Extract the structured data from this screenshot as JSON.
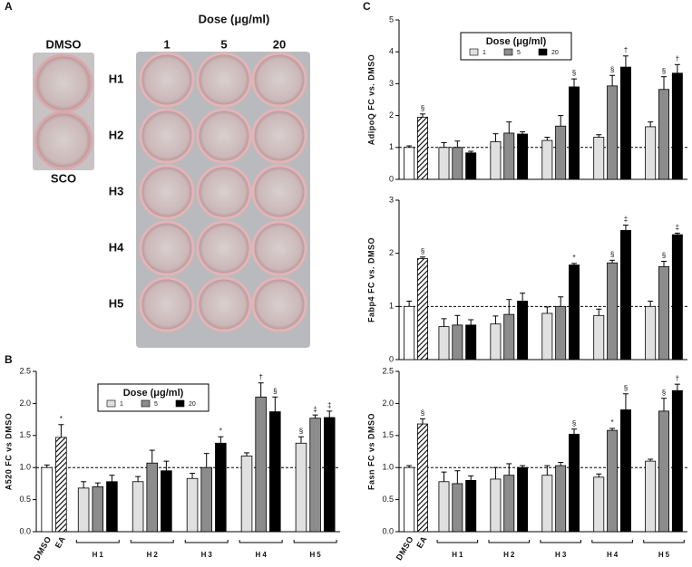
{
  "panel_labels": [
    "A",
    "B",
    "C"
  ],
  "photo": {
    "dose_title": "Dose (μg/ml)",
    "doses": [
      "1",
      "5",
      "20"
    ],
    "controls": [
      "DMSO",
      "SCO"
    ],
    "rows": [
      "H1",
      "H2",
      "H3",
      "H4",
      "H5"
    ]
  },
  "chart_data": [
    {
      "type": "bar",
      "y_label": "A520 FC vs DMSO",
      "legend": "top-left",
      "legend_title": "Dose (μg/ml)",
      "ylim": [
        0,
        2.5
      ],
      "yticks": [
        {
          "value": 0,
          "label": "0.0"
        },
        0.5,
        {
          "value": 1,
          "label": "1.0"
        },
        1.5,
        {
          "value": 2,
          "label": "2.0"
        },
        2.5
      ],
      "reference_line": 1,
      "controls": {
        "categories": [
          "DMSO",
          "EA"
        ],
        "fills": [
          "#ffffff",
          "hatched"
        ],
        "values": [
          1.0,
          1.47
        ],
        "errors": [
          0.04,
          0.2
        ],
        "markers": [
          null,
          "*"
        ]
      },
      "groups": [
        "H1",
        "H2",
        "H3",
        "H4",
        "H5"
      ],
      "series": [
        {
          "name": "1",
          "color": "#e0e0e0",
          "values": [
            0.68,
            0.78,
            0.83,
            1.18,
            1.38
          ],
          "errors": [
            0.1,
            0.08,
            0.08,
            0.05,
            0.1
          ],
          "markers": [
            null,
            null,
            null,
            null,
            "§"
          ]
        },
        {
          "name": "5",
          "color": "#8c8c8c",
          "values": [
            0.7,
            1.07,
            1.0,
            2.1,
            1.77
          ],
          "errors": [
            0.06,
            0.2,
            0.22,
            0.22,
            0.05
          ],
          "markers": [
            null,
            null,
            null,
            "†",
            "‡"
          ]
        },
        {
          "name": "20",
          "color": "#000000",
          "values": [
            0.78,
            0.95,
            1.38,
            1.87,
            1.78
          ],
          "errors": [
            0.1,
            0.15,
            0.1,
            0.23,
            0.1
          ],
          "markers": [
            null,
            null,
            "*",
            "§",
            "‡"
          ]
        }
      ]
    },
    {
      "type": "bar",
      "y_label": "AdipoQ FC vs. DMSO",
      "legend": "top-left",
      "legend_title": "Dose (μg/ml)",
      "ylim": [
        0,
        5
      ],
      "yticks": [
        0,
        1,
        2,
        3,
        4,
        5
      ],
      "reference_line": 1,
      "controls": {
        "categories": [
          "DMSO",
          "EA"
        ],
        "fills": [
          "#ffffff",
          "hatched"
        ],
        "values": [
          1.0,
          1.95
        ],
        "errors": [
          0.05,
          0.1
        ],
        "markers": [
          null,
          "§"
        ]
      },
      "groups": [
        "H1",
        "H2",
        "H3",
        "H4",
        "H5"
      ],
      "series": [
        {
          "name": "1",
          "color": "#e0e0e0",
          "values": [
            1.0,
            1.18,
            1.22,
            1.32,
            1.65
          ],
          "errors": [
            0.15,
            0.25,
            0.1,
            0.08,
            0.15
          ],
          "markers": [
            null,
            null,
            null,
            null,
            null
          ]
        },
        {
          "name": "5",
          "color": "#8c8c8c",
          "values": [
            1.0,
            1.45,
            1.67,
            2.93,
            2.82
          ],
          "errors": [
            0.2,
            0.35,
            0.33,
            0.33,
            0.4
          ],
          "markers": [
            null,
            null,
            null,
            "§",
            "§"
          ]
        },
        {
          "name": "20",
          "color": "#000000",
          "values": [
            0.83,
            1.42,
            2.9,
            3.52,
            3.33
          ],
          "errors": [
            0.05,
            0.07,
            0.25,
            0.35,
            0.27
          ],
          "markers": [
            null,
            null,
            "§",
            "†",
            "†"
          ]
        }
      ]
    },
    {
      "type": "bar",
      "y_label": "Fabp4 FC vs. DMSO",
      "ylim": [
        0,
        3
      ],
      "yticks": [
        0,
        1,
        2,
        3
      ],
      "reference_line": 1,
      "controls": {
        "categories": [
          "DMSO",
          "EA"
        ],
        "fills": [
          "#ffffff",
          "hatched"
        ],
        "values": [
          1.0,
          1.9
        ],
        "errors": [
          0.1,
          0.03
        ],
        "markers": [
          null,
          "§"
        ]
      },
      "groups": [
        "H1",
        "H2",
        "H3",
        "H4",
        "H5"
      ],
      "series": [
        {
          "name": "1",
          "color": "#e0e0e0",
          "values": [
            0.62,
            0.67,
            0.87,
            0.83,
            1.0
          ],
          "errors": [
            0.15,
            0.15,
            0.12,
            0.12,
            0.1
          ],
          "markers": [
            null,
            null,
            null,
            null,
            null
          ]
        },
        {
          "name": "5",
          "color": "#8c8c8c",
          "values": [
            0.65,
            0.85,
            1.0,
            1.82,
            1.75
          ],
          "errors": [
            0.18,
            0.28,
            0.18,
            0.05,
            0.1
          ],
          "markers": [
            null,
            null,
            null,
            "§",
            "§"
          ]
        },
        {
          "name": "20",
          "color": "#000000",
          "values": [
            0.65,
            1.1,
            1.78,
            2.43,
            2.35
          ],
          "errors": [
            0.1,
            0.15,
            0.03,
            0.1,
            0.03
          ],
          "markers": [
            null,
            null,
            "*",
            "‡",
            "‡"
          ]
        }
      ]
    },
    {
      "type": "bar",
      "y_label": "Fasn FC vs DMSO",
      "ylim": [
        0,
        2.5
      ],
      "yticks": [
        {
          "value": 0,
          "label": "0.0"
        },
        0.5,
        {
          "value": 1,
          "label": "1.0"
        },
        1.5,
        {
          "value": 2,
          "label": "2.0"
        },
        2.5
      ],
      "reference_line": 1,
      "controls": {
        "categories": [
          "DMSO",
          "EA"
        ],
        "fills": [
          "#ffffff",
          "hatched"
        ],
        "values": [
          1.0,
          1.68
        ],
        "errors": [
          0.03,
          0.08
        ],
        "markers": [
          null,
          "§"
        ]
      },
      "groups": [
        "H1",
        "H2",
        "H3",
        "H4",
        "H5"
      ],
      "series": [
        {
          "name": "1",
          "color": "#e0e0e0",
          "values": [
            0.78,
            0.82,
            0.88,
            0.85,
            1.1
          ],
          "errors": [
            0.15,
            0.18,
            0.15,
            0.05,
            0.03
          ],
          "markers": [
            null,
            null,
            null,
            null,
            null
          ]
        },
        {
          "name": "5",
          "color": "#8c8c8c",
          "values": [
            0.75,
            0.88,
            1.03,
            1.58,
            1.88
          ],
          "errors": [
            0.2,
            0.18,
            0.05,
            0.03,
            0.2
          ],
          "markers": [
            null,
            null,
            null,
            "*",
            "§"
          ]
        },
        {
          "name": "20",
          "color": "#000000",
          "values": [
            0.8,
            1.0,
            1.52,
            1.9,
            2.2
          ],
          "errors": [
            0.07,
            0.03,
            0.08,
            0.25,
            0.1
          ],
          "markers": [
            null,
            null,
            "§",
            "§",
            "†"
          ]
        }
      ]
    }
  ]
}
